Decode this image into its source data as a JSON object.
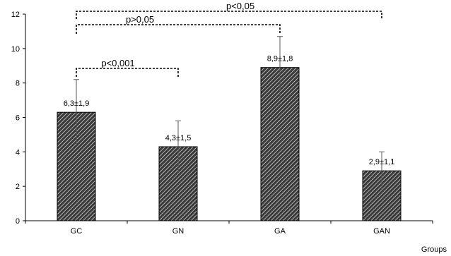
{
  "chart_data": {
    "type": "bar",
    "categories": [
      "GC",
      "GN",
      "GA",
      "GAN"
    ],
    "values": [
      6.3,
      4.3,
      8.9,
      2.9
    ],
    "errors": [
      1.9,
      1.5,
      1.8,
      1.1
    ],
    "data_labels": [
      "6,3±1,9",
      "4,3±1,5",
      "8,9±1,8",
      "2,9±1,1"
    ],
    "xlabel": "Groups",
    "ylabel": "",
    "ylim": [
      0,
      12
    ],
    "yticks": [
      0,
      2,
      4,
      6,
      8,
      10,
      12
    ],
    "grid": false,
    "bar_pattern": "diagonal hatch",
    "colors": {
      "bar_fill": "#3a3a3a",
      "bar_stroke": "#000000",
      "hatch": "#ffffff"
    },
    "significance": [
      {
        "label": "p<0,05",
        "from": "GC",
        "to": "GAN"
      },
      {
        "label": "p>0,05",
        "from": "GC",
        "to": "GA"
      },
      {
        "label": "p<0,001",
        "from": "GC",
        "to": "GN"
      }
    ]
  }
}
